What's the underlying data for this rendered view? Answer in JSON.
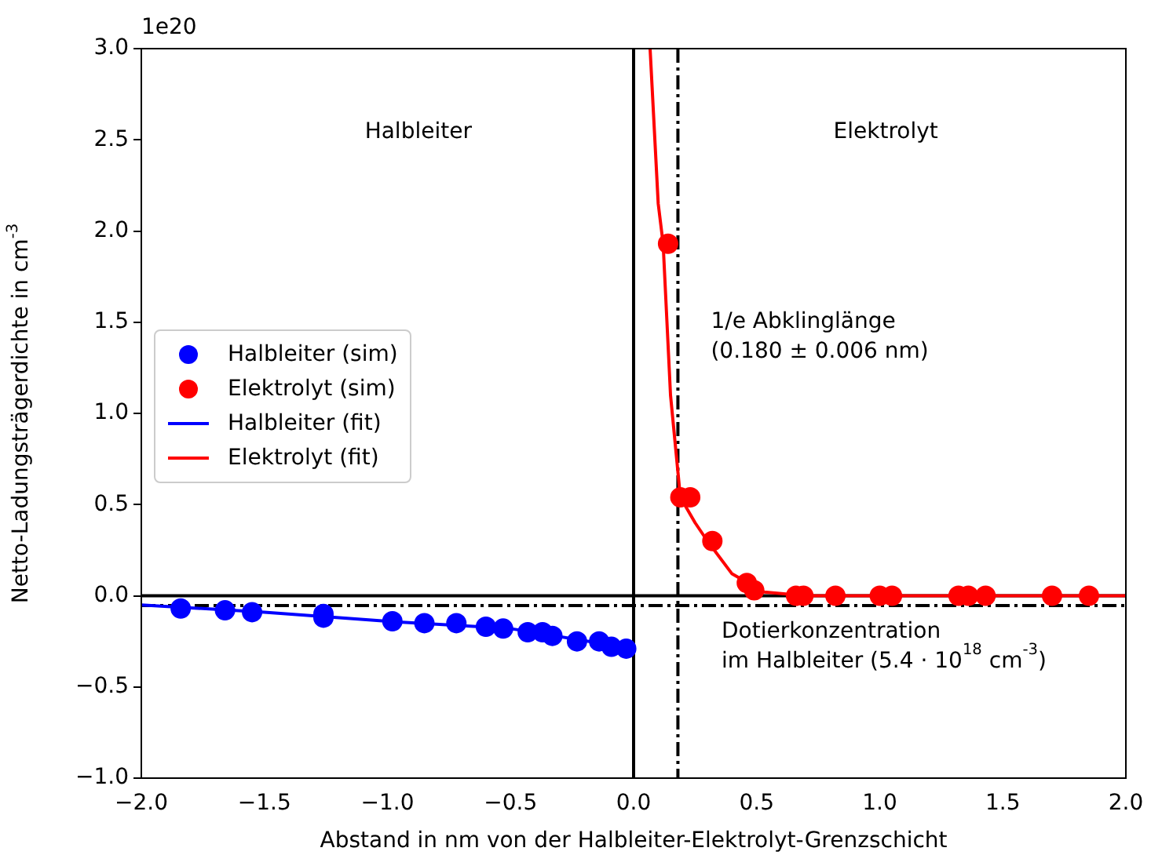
{
  "chart_data": {
    "type": "scatter",
    "xlabel": "Abstand in nm von der Halbleiter-Elektrolyt-Grenzschicht",
    "ylabel": "Netto-Ladungsträgerdichte in cm$^{-3}$",
    "xlim": [
      -2.0,
      2.0
    ],
    "ylim": [
      -1.0,
      3.0
    ],
    "xticks": [
      {
        "value": -2,
        "label": "−2.0"
      },
      {
        "value": -1.5,
        "label": "−1.5"
      },
      {
        "value": -1,
        "label": "−1.0"
      },
      {
        "value": -0.5,
        "label": "−0.5"
      },
      {
        "value": 0,
        "label": "0.0"
      },
      {
        "value": 0.5,
        "label": "0.5"
      },
      {
        "value": 1,
        "label": "1.0"
      },
      {
        "value": 1.5,
        "label": "1.5"
      },
      {
        "value": 2,
        "label": "2.0"
      }
    ],
    "yticks": [
      {
        "value": -1,
        "label": "−1.0"
      },
      {
        "value": -0.5,
        "label": "−0.5"
      },
      {
        "value": 0,
        "label": "0.0"
      },
      {
        "value": 0.5,
        "label": "0.5"
      },
      {
        "value": 1,
        "label": "1.0"
      },
      {
        "value": 1.5,
        "label": "1.5"
      },
      {
        "value": 2,
        "label": "2.0"
      },
      {
        "value": 2.5,
        "label": "2.5"
      },
      {
        "value": 3,
        "label": "3.0"
      }
    ],
    "grid": false,
    "legend": "left",
    "series": [
      {
        "name": "Halbleiter (sim)",
        "marker": "circle",
        "color": "#0000ff",
        "x": [
          -1.84,
          -1.66,
          -1.55,
          -1.26,
          -1.26,
          -0.98,
          -0.85,
          -0.72,
          -0.6,
          -0.53,
          -0.43,
          -0.37,
          -0.33,
          -0.23,
          -0.14,
          -0.09,
          -0.03
        ],
        "values": [
          -0.07,
          -0.08,
          -0.09,
          -0.1,
          -0.12,
          -0.14,
          -0.15,
          -0.15,
          -0.17,
          -0.18,
          -0.2,
          -0.2,
          -0.22,
          -0.25,
          -0.25,
          -0.28,
          -0.29
        ]
      },
      {
        "name": "Elektrolyt (sim)",
        "marker": "circle",
        "color": "#ff0000",
        "x": [
          0.14,
          0.19,
          0.23,
          0.32,
          0.46,
          0.49,
          0.66,
          0.69,
          0.82,
          1.0,
          1.05,
          1.32,
          1.36,
          1.43,
          1.7,
          1.85
        ],
        "values": [
          1.93,
          0.54,
          0.54,
          0.3,
          0.07,
          0.03,
          0.0,
          0.0,
          0.0,
          0.0,
          0.0,
          0.0,
          0.0,
          0.0,
          0.0,
          0.0
        ]
      },
      {
        "name": "Halbleiter (fit)",
        "type": "line",
        "marker": "none",
        "color": "#0000ff",
        "x": [
          -2.0,
          -1.5,
          -1.0,
          -0.5,
          0.0
        ],
        "values": [
          -0.05,
          -0.09,
          -0.14,
          -0.18,
          -0.29
        ]
      },
      {
        "name": "Elektrolyt (fit)",
        "type": "line",
        "marker": "none",
        "color": "#ff0000",
        "x": [
          0.067,
          0.1,
          0.12,
          0.15,
          0.19,
          0.25,
          0.3,
          0.4,
          0.53,
          0.7,
          1.0,
          2.0
        ],
        "values": [
          3.0,
          2.15,
          1.93,
          1.1,
          0.54,
          0.4,
          0.3,
          0.12,
          0.02,
          0.0,
          0.0,
          0.0
        ]
      }
    ],
    "ref_lines": [
      {
        "axis": "x",
        "value": 0,
        "color": "#000000",
        "line_style": "solid"
      },
      {
        "axis": "y",
        "value": 0,
        "color": "#000000",
        "line_style": "solid"
      },
      {
        "axis": "x",
        "value": 0.18,
        "color": "#000000",
        "line_style": "dashdot",
        "label": "1/e Abklinglänge\n(0.180 ± 0.006 nm)"
      },
      {
        "axis": "y",
        "value": -0.054,
        "color": "#000000",
        "line_style": "dashdot",
        "label": "Dotierkonzentration\nim Halbleiter (5.4 · 10$^{18}$ cm$^{-3}$)"
      }
    ],
    "annotations": [
      "1e20",
      "Halbleiter",
      "Elektrolyt"
    ]
  }
}
